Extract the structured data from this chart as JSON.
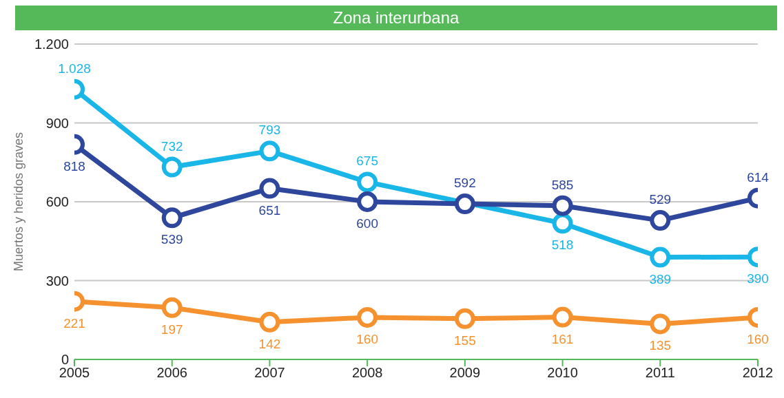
{
  "chart_data": {
    "type": "line",
    "title": "Zona interurbana",
    "ylabel": "Muertos y heridos graves",
    "x": [
      2005,
      2006,
      2007,
      2008,
      2009,
      2010,
      2011,
      2012
    ],
    "xlim": [
      2005,
      2012
    ],
    "xticks": [
      2005,
      2006,
      2007,
      2008,
      2009,
      2010,
      2011,
      2012
    ],
    "ylim": [
      0,
      1200
    ],
    "yticks": [
      0,
      300,
      600,
      900,
      {
        "value": 1200,
        "label": "1.200"
      }
    ],
    "grid": "y",
    "legend": false,
    "marker": "circle",
    "line_style": "solid",
    "series": [
      {
        "color": "#1bb6e8",
        "values": [
          1028,
          732,
          793,
          675,
          null,
          518,
          389,
          390
        ],
        "value_labels": [
          "1.028",
          "732",
          "793",
          "675",
          null,
          "518",
          "389",
          "390"
        ]
      },
      {
        "color": "#2e469b",
        "values": [
          818,
          539,
          651,
          600,
          592,
          585,
          529,
          614
        ],
        "value_labels": [
          "818",
          "539",
          "651",
          "600",
          "592",
          "585",
          "529",
          "614"
        ]
      },
      {
        "color": "#f5922f",
        "values": [
          221,
          197,
          142,
          160,
          155,
          161,
          135,
          160
        ],
        "value_labels": [
          "221",
          "197",
          "142",
          "160",
          "155",
          "161",
          "135",
          "160"
        ]
      }
    ]
  }
}
